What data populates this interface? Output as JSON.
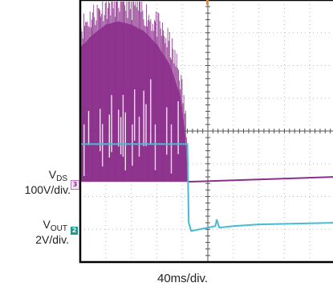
{
  "chart_data": {
    "type": "line",
    "title": "",
    "time_scale": "40ms/div.",
    "x_range_div": [
      0,
      10
    ],
    "y_range_div": [
      -4,
      4
    ],
    "grid": true,
    "series": [
      {
        "name": "V_DS",
        "label_main": "V",
        "label_sub": "DS",
        "scale": "100V/div.",
        "channel": "3",
        "color": "#8b2f8b",
        "marker_color": "#b27ab5",
        "ref_level_div": -1.55,
        "envelope_top_div": [
          [
            0,
            2.7
          ],
          [
            0.5,
            3.1
          ],
          [
            1,
            3.4
          ],
          [
            1.5,
            3.5
          ],
          [
            2,
            3.4
          ],
          [
            2.5,
            3.2
          ],
          [
            3,
            2.8
          ],
          [
            3.5,
            2.2
          ],
          [
            3.9,
            1.3
          ],
          [
            4.1,
            0.2
          ],
          [
            4.2,
            -1.0
          ]
        ],
        "settled_div": -1.4
      },
      {
        "name": "V_OUT",
        "label_main": "V",
        "label_sub": "OUT",
        "scale": "2V/div.",
        "channel": "2",
        "color": "#45bcd2",
        "marker_color": "#1e9b8f",
        "level_before_div": -0.4,
        "drop_time_div": 4.2,
        "points_after_div": [
          [
            4.25,
            -2.8
          ],
          [
            4.35,
            -3.05
          ],
          [
            5,
            -2.95
          ],
          [
            5.3,
            -2.9
          ],
          [
            5.35,
            -2.7
          ],
          [
            5.45,
            -2.95
          ],
          [
            6,
            -2.9
          ],
          [
            7,
            -2.85
          ],
          [
            10,
            -2.8
          ]
        ]
      }
    ]
  }
}
